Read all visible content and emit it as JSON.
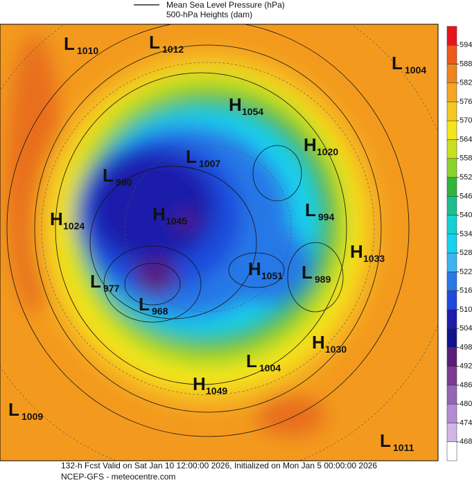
{
  "header": {
    "line1": "Mean Sea Level Pressure (hPa)",
    "line2": "500-hPa Heights (dam)"
  },
  "footer": {
    "line1": "132-h Fcst Valid on Sat Jan 10 12:00:00 2026, Initialized on Mon Jan  5 00:00:00 2026",
    "line2": "NCEP-GFS  - meteocentre.com"
  },
  "centers": [
    {
      "letter": "L",
      "value": 1010
    },
    {
      "letter": "L",
      "value": 1012
    },
    {
      "letter": "L",
      "value": 1004
    },
    {
      "letter": "H",
      "value": 1054
    },
    {
      "letter": "H",
      "value": 1020
    },
    {
      "letter": "L",
      "value": 1007
    },
    {
      "letter": "L",
      "value": 990
    },
    {
      "letter": "H",
      "value": 1024
    },
    {
      "letter": "H",
      "value": 1045
    },
    {
      "letter": "L",
      "value": 994
    },
    {
      "letter": "H",
      "value": 1033
    },
    {
      "letter": "H",
      "value": 1051
    },
    {
      "letter": "L",
      "value": 989
    },
    {
      "letter": "L",
      "value": 977
    },
    {
      "letter": "L",
      "value": 968
    },
    {
      "letter": "H",
      "value": 1030
    },
    {
      "letter": "L",
      "value": 1004
    },
    {
      "letter": "H",
      "value": 1049
    },
    {
      "letter": "L",
      "value": 1009
    },
    {
      "letter": "L",
      "value": 1011
    }
  ],
  "colorbar": {
    "labels": [
      594,
      588,
      582,
      576,
      570,
      564,
      558,
      552,
      546,
      540,
      534,
      528,
      522,
      516,
      510,
      504,
      498,
      492,
      486,
      480,
      474,
      468
    ],
    "colors": [
      "#e8141c",
      "#ee5a1c",
      "#f0841f",
      "#f5a623",
      "#f5c81e",
      "#f5e61a",
      "#c8e01e",
      "#8cd22c",
      "#32b43c",
      "#1ebe8c",
      "#14d2d2",
      "#14d2f0",
      "#3cb4f0",
      "#2878e6",
      "#1e4bdc",
      "#1e1eaa",
      "#10148c",
      "#5a1e78",
      "#7a3c90",
      "#9664b4",
      "#b48cd2",
      "#d2b4e6",
      "#ffffff"
    ]
  }
}
